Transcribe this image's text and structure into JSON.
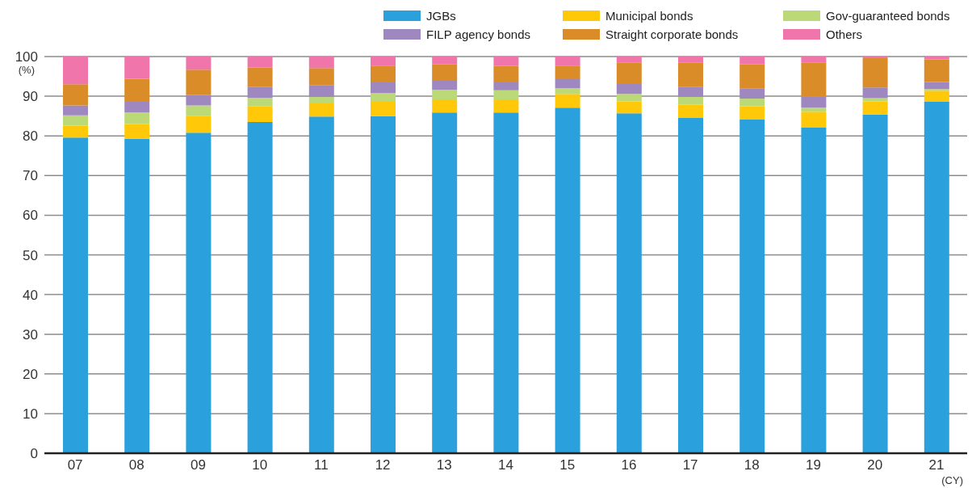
{
  "chart_data": {
    "type": "bar",
    "stacked": true,
    "xlabel": "(CY)",
    "ylabel": "(%)",
    "categories": [
      "07",
      "08",
      "09",
      "10",
      "11",
      "12",
      "13",
      "14",
      "15",
      "16",
      "17",
      "18",
      "19",
      "20",
      "21"
    ],
    "ylim": [
      0,
      100
    ],
    "yticks": [
      0,
      10,
      20,
      30,
      40,
      50,
      60,
      70,
      80,
      90,
      100
    ],
    "grid": "y",
    "legend": "top right",
    "series": [
      {
        "name": "JGBs",
        "color": "#2aa1dc",
        "values": [
          79.6,
          79.3,
          80.8,
          83.5,
          84.9,
          85.0,
          85.9,
          85.9,
          87.1,
          85.7,
          84.6,
          84.1,
          82.2,
          85.4,
          88.6
        ]
      },
      {
        "name": "Municipal bonds",
        "color": "#ffc90a",
        "values": [
          3.0,
          3.7,
          4.3,
          3.9,
          3.3,
          3.6,
          3.3,
          3.3,
          3.5,
          3.0,
          3.3,
          3.4,
          3.9,
          3.3,
          2.8
        ]
      },
      {
        "name": "Gov-guaranteed bonds",
        "color": "#bcd977",
        "values": [
          2.6,
          2.9,
          2.6,
          2.2,
          1.6,
          2.2,
          2.4,
          2.3,
          1.4,
          1.9,
          1.9,
          1.9,
          1.0,
          0.8,
          0.4
        ]
      },
      {
        "name": "FILP agency bonds",
        "color": "#9e88bf",
        "values": [
          2.5,
          2.7,
          2.6,
          2.7,
          3.0,
          2.7,
          2.3,
          2.0,
          2.3,
          2.5,
          2.6,
          2.6,
          2.8,
          2.7,
          1.8
        ]
      },
      {
        "name": "Straight corporate bonds",
        "color": "#d98c28",
        "values": [
          5.3,
          5.8,
          6.4,
          4.9,
          4.3,
          4.2,
          4.1,
          4.1,
          3.4,
          5.4,
          6.1,
          6.0,
          8.6,
          7.4,
          5.7
        ]
      },
      {
        "name": "Others",
        "color": "#f075aa",
        "values": [
          7.0,
          5.6,
          3.3,
          2.8,
          2.9,
          2.3,
          2.0,
          2.4,
          2.3,
          1.5,
          1.5,
          2.0,
          1.5,
          0.4,
          0.7
        ]
      }
    ]
  }
}
